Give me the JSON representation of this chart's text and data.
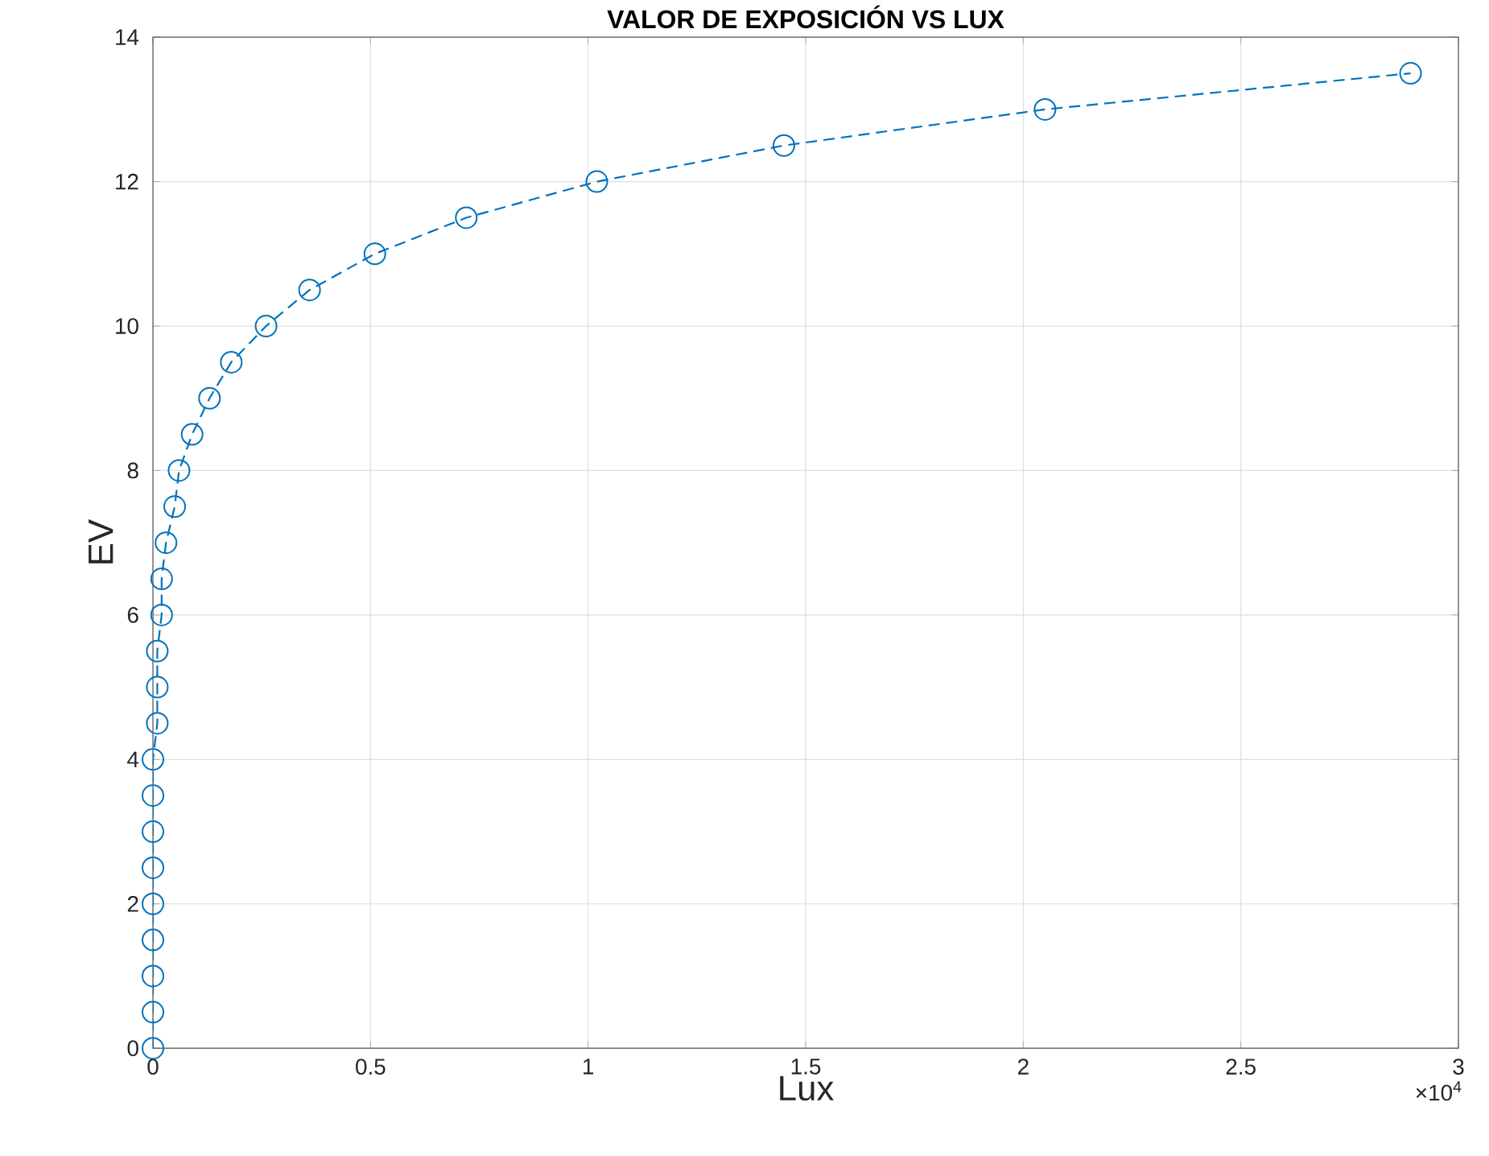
{
  "chart_data": {
    "type": "line",
    "title": "VALOR DE EXPOSICIÓN VS LUX",
    "xlabel": "Lux",
    "ylabel": "EV",
    "x": [
      0,
      0,
      0,
      0,
      0,
      0,
      0,
      0,
      0,
      0.01,
      0.01,
      0.01,
      0.02,
      0.02,
      0.03,
      0.05,
      0.06,
      0.09,
      0.13,
      0.18,
      0.26,
      0.36,
      0.51,
      0.72,
      1.02,
      1.45,
      2.05,
      2.89
    ],
    "series": [
      {
        "color": "#0072bd",
        "values": [
          0,
          0.5,
          1,
          1.5,
          2,
          2.5,
          3,
          3.5,
          4,
          4.5,
          5,
          5.5,
          6,
          6.5,
          7,
          7.5,
          8,
          8.5,
          9,
          9.5,
          10,
          10.5,
          11,
          11.5,
          12,
          12.5,
          13,
          13.5
        ]
      }
    ],
    "xlim": [
      0,
      3
    ],
    "ylim": [
      0,
      14
    ],
    "xticks": [
      0,
      0.5,
      1,
      1.5,
      2,
      2.5,
      3
    ],
    "yticks": [
      0,
      2,
      4,
      6,
      8,
      10,
      12,
      14
    ],
    "annotations": [
      "×10$^{4}$"
    ],
    "grid": true,
    "marker": "circle",
    "line_style": "dashed"
  }
}
